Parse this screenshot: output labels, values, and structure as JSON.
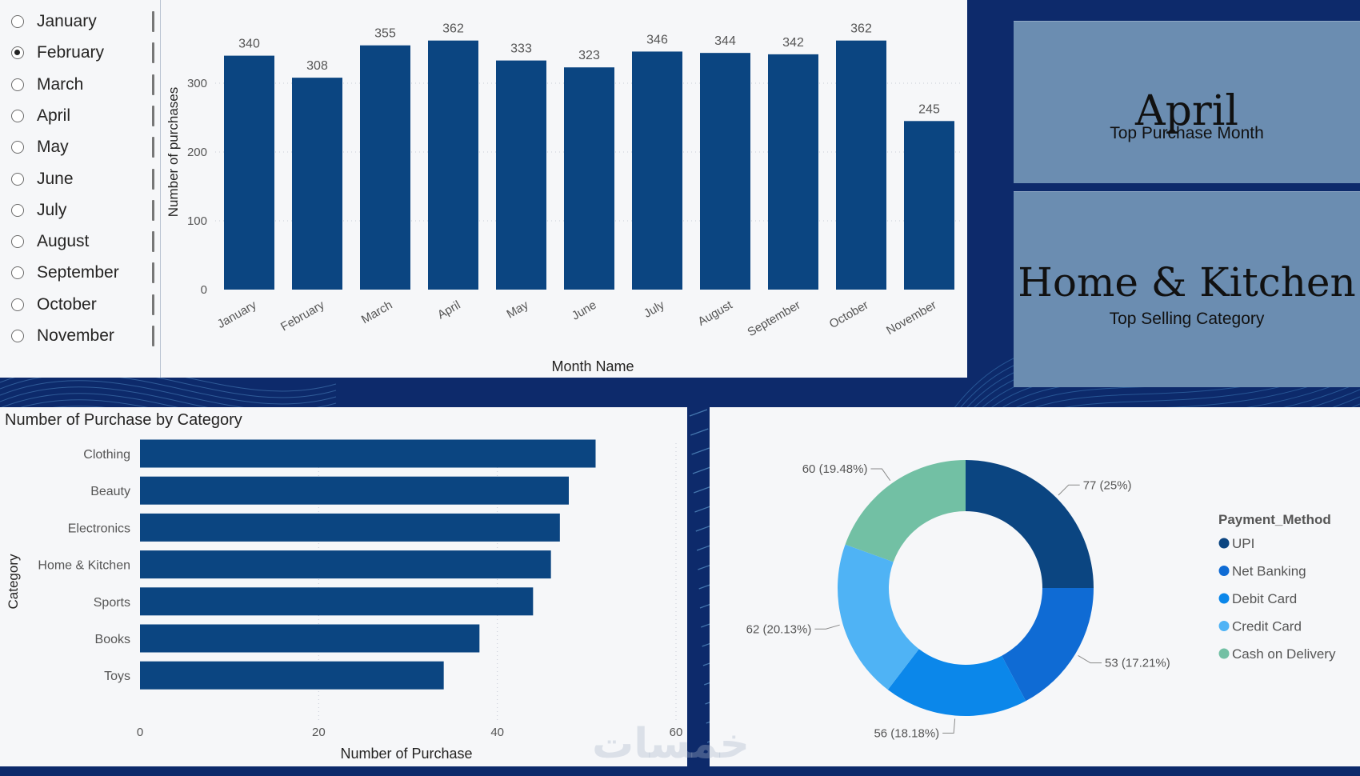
{
  "slicer": {
    "items": [
      "January",
      "February",
      "March",
      "April",
      "May",
      "June",
      "July",
      "August",
      "September",
      "October",
      "November"
    ],
    "selected": 1
  },
  "cards": {
    "top_month_value": "April",
    "top_month_caption": "Top Purchase Month",
    "top_category_value": "Home & Kitchen",
    "top_category_caption": "Top Selling Category"
  },
  "watermark": "خمسات",
  "chart_data": [
    {
      "type": "bar",
      "title": "",
      "categories": [
        "January",
        "February",
        "March",
        "April",
        "May",
        "June",
        "July",
        "August",
        "September",
        "October",
        "November"
      ],
      "values": [
        340,
        308,
        355,
        362,
        333,
        323,
        346,
        344,
        342,
        362,
        245
      ],
      "xlabel": "Month Name",
      "ylabel": "Number of purchases",
      "ylim": [
        0,
        360
      ],
      "yticks": [
        0,
        100,
        200,
        300
      ],
      "color": "#0b4581"
    },
    {
      "type": "bar",
      "orientation": "horizontal",
      "title": "Number of Purchase by Category",
      "categories": [
        "Clothing",
        "Beauty",
        "Electronics",
        "Home & Kitchen",
        "Sports",
        "Books",
        "Toys"
      ],
      "values": [
        51,
        48,
        47,
        46,
        44,
        38,
        34
      ],
      "xlabel": "Number of Purchase",
      "ylabel": "Category",
      "xlim": [
        0,
        60
      ],
      "xticks": [
        0,
        20,
        40,
        60
      ],
      "color": "#0b4581"
    },
    {
      "type": "pie",
      "variant": "donut",
      "legend_title": "Payment_Method",
      "labels": [
        "UPI",
        "Net Banking",
        "Debit Card",
        "Credit Card",
        "Cash on Delivery"
      ],
      "values": [
        77,
        53,
        56,
        62,
        60
      ],
      "data_labels": [
        "77 (25%)",
        "53 (17.21%)",
        "56 (18.18%)",
        "62 (20.13%)",
        "60 (19.48%)"
      ],
      "colors": [
        "#0b4581",
        "#0f6bd4",
        "#0b87ea",
        "#4fb3f5",
        "#72c0a4"
      ],
      "legend_position": "right"
    }
  ]
}
